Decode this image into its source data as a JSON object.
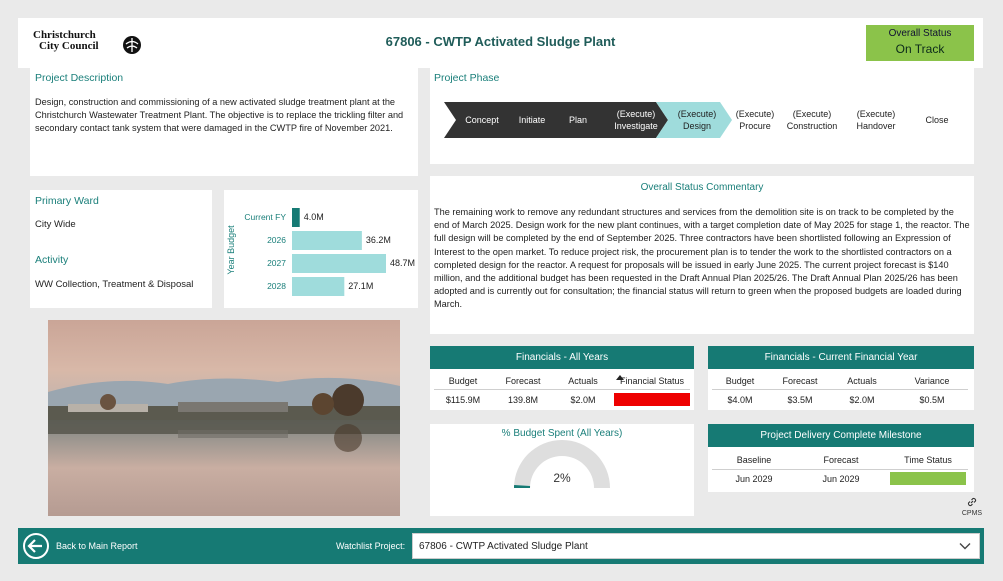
{
  "header": {
    "logo_line1": "Christchurch",
    "logo_line2": "City Council",
    "title": "67806 - CWTP Activated Sludge Plant",
    "status_label": "Overall Status",
    "status_value": "On Track",
    "status_color": "#8bc34a"
  },
  "description": {
    "title": "Project Description",
    "text": "Design, construction and commissioning of a new activated sludge treatment plant at the Christchurch Wastewater Treatment Plant. The objective is to replace the trickling filter and secondary contact tank system that were damaged in the CWTP fire of November 2021."
  },
  "ward": {
    "title": "Primary Ward",
    "value": "City Wide",
    "activity_title": "Activity",
    "activity_value": "WW Collection, Treatment & Disposal"
  },
  "chart_data": {
    "type": "bar",
    "orientation": "horizontal",
    "ylabel": "Year Budget",
    "categories": [
      "Current FY",
      "2026",
      "2027",
      "2028"
    ],
    "values": [
      4.0,
      36.2,
      48.7,
      27.1
    ],
    "labels": [
      "4.0M",
      "36.2M",
      "48.7M",
      "27.1M"
    ],
    "colors": [
      "#167a74",
      "#9fdcdc",
      "#9fdcdc",
      "#9fdcdc"
    ],
    "xlim": [
      0,
      48.7
    ]
  },
  "phase": {
    "title": "Project Phase",
    "steps": [
      {
        "l1": "",
        "l2": "Concept"
      },
      {
        "l1": "",
        "l2": "Initiate"
      },
      {
        "l1": "",
        "l2": "Plan"
      },
      {
        "l1": "(Execute)",
        "l2": "Investigate"
      },
      {
        "l1": "(Execute)",
        "l2": "Design"
      },
      {
        "l1": "(Execute)",
        "l2": "Procure"
      },
      {
        "l1": "(Execute)",
        "l2": "Construction"
      },
      {
        "l1": "(Execute)",
        "l2": "Handover"
      },
      {
        "l1": "",
        "l2": "Close"
      }
    ],
    "completed_color": "#333333",
    "current_color": "#9fdcdc"
  },
  "commentary": {
    "title": "Overall Status Commentary",
    "text": "The remaining work to remove any redundant structures and services from the demolition site is on track to be completed by the end of March 2025. Design work for the new plant continues, with a target completion date of May 2025 for stage 1, the reactor. The full design will be completed by the end of September 2025. Three contractors have been shortlisted following an Expression of Interest to the open market. To reduce project risk, the procurement plan is to tender the work to the shortlisted contractors on a completed design for the reactor. A request for proposals will be issued in early June 2025. The current project forecast is $140 million, and the additional budget has been requested in the Draft Annual Plan 2025/26. The Draft Annual Plan 2025/26 has been adopted and is currently out for consultation; the financial status will return to green when the proposed budgets are loaded during March."
  },
  "fin_all": {
    "title": "Financials - All Years",
    "headers": [
      "Budget",
      "Forecast",
      "Actuals",
      "Financial Status"
    ],
    "values": [
      "$115.9M",
      "139.8M",
      "$2.0M"
    ],
    "status_color": "#ee0000"
  },
  "fin_fy": {
    "title": "Financials - Current Financial Year",
    "headers": [
      "Budget",
      "Forecast",
      "Actuals",
      "Variance"
    ],
    "values": [
      "$4.0M",
      "$3.5M",
      "$2.0M",
      "$0.5M"
    ]
  },
  "gauge": {
    "title": "% Budget Spent (All Years)",
    "value": 2,
    "label": "2%"
  },
  "milestone": {
    "title": "Project Delivery Complete Milestone",
    "headers": [
      "Baseline",
      "Forecast",
      "Time Status"
    ],
    "values": [
      "Jun 2029",
      "Jun 2029"
    ],
    "status_color": "#8bc34a"
  },
  "cpms": {
    "label": "CPMS"
  },
  "footer": {
    "back_label": "Back to Main Report",
    "watch_label": "Watchlist Project:",
    "watch_value": "67806 - CWTP Activated Sludge Plant"
  }
}
